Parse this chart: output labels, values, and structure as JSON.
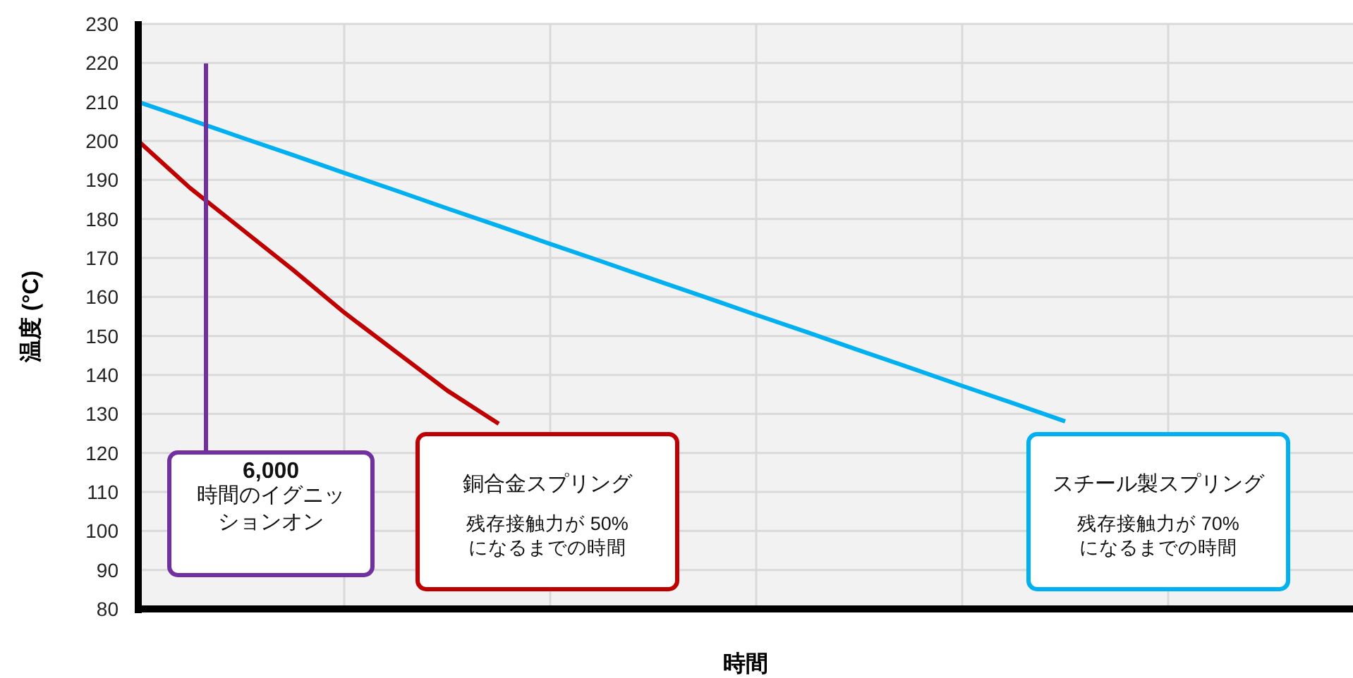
{
  "chart_data": {
    "type": "line",
    "xlabel": "時間",
    "ylabel": "温度 (°C)",
    "categories": [
      null,
      null,
      null,
      null,
      null,
      null,
      null,
      null,
      null,
      null,
      null,
      null,
      null,
      null,
      null,
      null,
      null,
      null,
      null,
      null,
      null,
      null,
      null,
      null
    ],
    "ylim": [
      80,
      230
    ],
    "yticks": [
      80,
      90,
      100,
      110,
      120,
      130,
      140,
      150,
      160,
      170,
      180,
      190,
      200,
      210,
      220,
      230
    ],
    "grid": true,
    "series": [
      {
        "color": "#c00000",
        "values": [
          200,
          188,
          177.5,
          167,
          156,
          146,
          136,
          127.5,
          null,
          null,
          null,
          null,
          null,
          null,
          null,
          null,
          null,
          null,
          null,
          null,
          null,
          null,
          null,
          null
        ]
      },
      {
        "color": "#00b0f0",
        "values": [
          210,
          205.5,
          200.9,
          196.4,
          191.8,
          187.3,
          182.7,
          178.2,
          173.6,
          169.1,
          164.5,
          160,
          155.4,
          150.9,
          146.3,
          141.8,
          137.2,
          132.7,
          128.1,
          null,
          null,
          null,
          null,
          null
        ]
      }
    ],
    "annotations": [
      "6,000",
      "時間のイグニッションオン",
      "銅合金スプリング",
      "残存接触力が 50%になるまでの時間",
      "スチール製スプリング",
      "残存接触力が 70%になるまでの時間"
    ]
  }
}
